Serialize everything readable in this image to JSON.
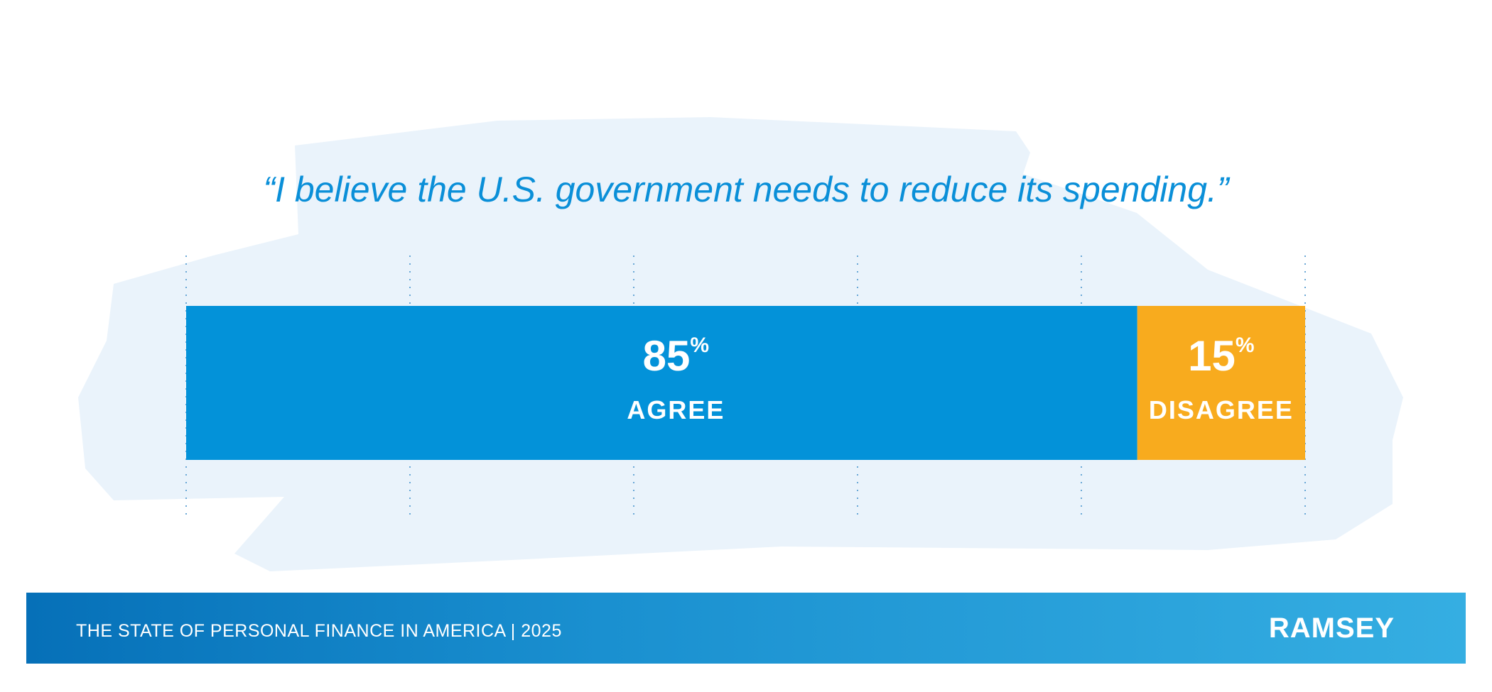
{
  "title": "“I believe the U.S. government needs to reduce its spending.”",
  "chart_data": {
    "type": "bar",
    "orientation": "horizontal-stacked",
    "categories": [
      "AGREE",
      "DISAGREE"
    ],
    "values": [
      85,
      15
    ],
    "value_labels": [
      "85",
      "15"
    ],
    "unit": "%",
    "colors": [
      "#0392d9",
      "#f8ab1e"
    ],
    "xlim": [
      0,
      100
    ],
    "grid": true,
    "grid_style": "dotted vertical at 20% steps"
  },
  "footer": {
    "text": "THE STATE OF PERSONAL FINANCE IN AMERICA | 2025",
    "logo": "RAMSEY"
  }
}
